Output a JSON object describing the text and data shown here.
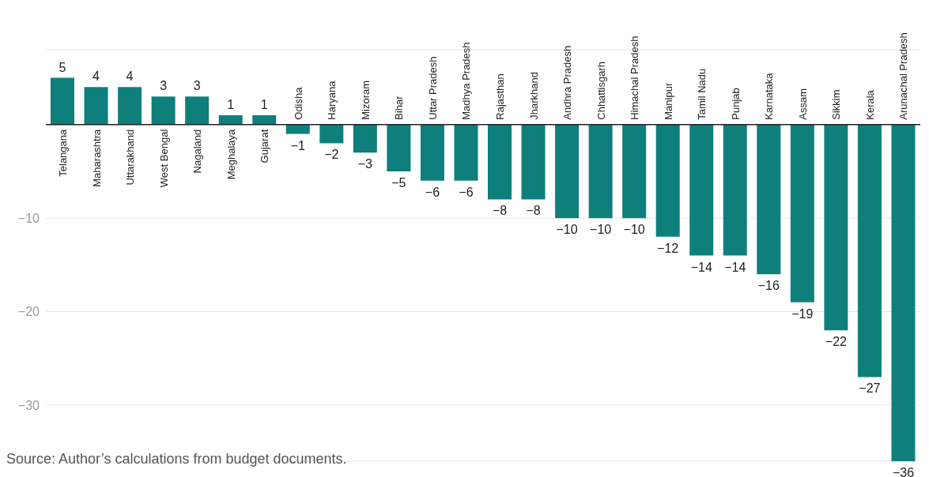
{
  "chart_data": {
    "type": "bar",
    "categories": [
      "Telangana",
      "Maharashtra",
      "Uttarakhand",
      "West Bengal",
      "Nagaland",
      "Meghalaya",
      "Gujarat",
      "Odisha",
      "Haryana",
      "Mizoram",
      "Bihar",
      "Uttar Pradesh",
      "Madhya Pradesh",
      "Rajasthan",
      "Jharkhand",
      "Andhra Pradesh",
      "Chhattisgarh",
      "Himachal Pradesh",
      "Manipur",
      "Tamil Nadu",
      "Punjab",
      "Karnataka",
      "Assam",
      "Sikkim",
      "Kerala",
      "Arunachal Pradesh"
    ],
    "values": [
      5,
      4,
      4,
      3,
      3,
      1,
      1,
      -1,
      -2,
      -3,
      -5,
      -6,
      -6,
      -8,
      -8,
      -10,
      -10,
      -10,
      -12,
      -14,
      -14,
      -16,
      -19,
      -22,
      -27,
      -36
    ],
    "color": "#0f7f7c",
    "ylim": [
      -36,
      8
    ],
    "yticks": [
      {
        "value": 0,
        "label": null
      },
      -10,
      -20,
      -30
    ],
    "grid": "y",
    "data_labels": true,
    "annotations": [
      "Source: Author’s calculations from budget documents."
    ]
  }
}
